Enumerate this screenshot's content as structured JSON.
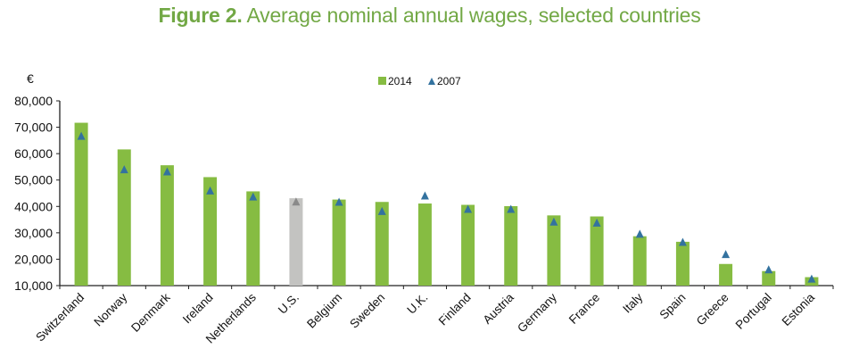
{
  "chart_data": {
    "type": "bar",
    "title_prefix": "Figure 2.",
    "title": "Average nominal annual wages, selected countries",
    "ylabel": "€",
    "xlabel": "",
    "ylim": [
      10000,
      80000
    ],
    "yticks": [
      "10,000",
      "20,000",
      "30,000",
      "40,000",
      "50,000",
      "60,000",
      "70,000",
      "80,000"
    ],
    "ytick_values": [
      10000,
      20000,
      30000,
      40000,
      50000,
      60000,
      70000,
      80000
    ],
    "legend_position": "top-center",
    "categories": [
      "Switzerland",
      "Norway",
      "Denmark",
      "Ireland",
      "Netherlands",
      "U.S.",
      "Belgium",
      "Sweden",
      "U.K.",
      "Finland",
      "Austria",
      "Germany",
      "France",
      "Italy",
      "Spain",
      "Greece",
      "Portugal",
      "Estonia"
    ],
    "highlight_category": "U.S.",
    "series": [
      {
        "name": "2014",
        "kind": "bar",
        "color": "#86bc42",
        "values": [
          71700,
          61600,
          55600,
          51100,
          45700,
          43100,
          42600,
          41700,
          41100,
          40600,
          40100,
          36600,
          36200,
          28700,
          26600,
          18200,
          15500,
          13200
        ]
      },
      {
        "name": "2007",
        "kind": "triangle",
        "color": "#33729f",
        "values": [
          66600,
          53900,
          53100,
          45900,
          43600,
          41700,
          41600,
          38100,
          44000,
          38900,
          38900,
          34100,
          33700,
          29500,
          26400,
          21800,
          16000,
          12500
        ]
      }
    ],
    "highlight_bar_color": "#c3c3c1",
    "highlight_marker_color": "#8a8a8a"
  }
}
